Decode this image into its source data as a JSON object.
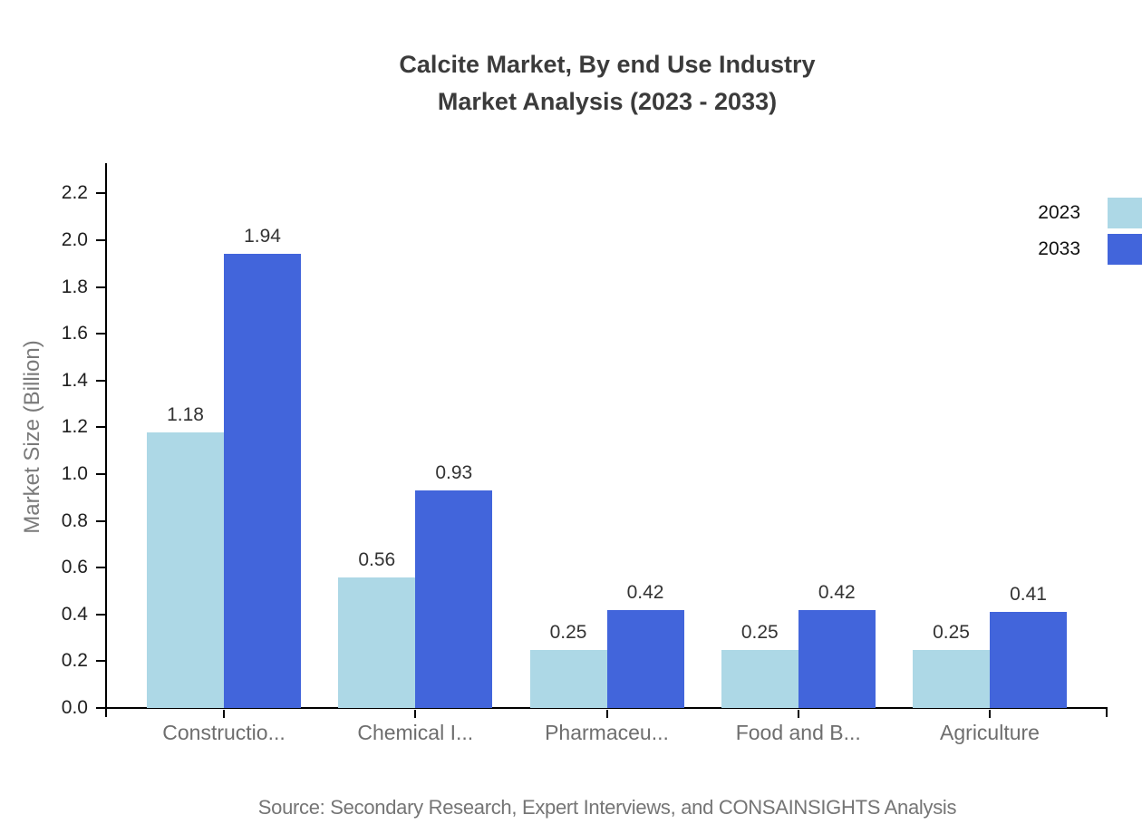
{
  "title": {
    "line1": "Calcite Market, By end Use Industry",
    "line2": "Market Analysis (2023 - 2033)"
  },
  "y_axis_label": "Market Size (Billion)",
  "source": "Source: Secondary Research, Expert Interviews, and CONSAINSIGHTS Analysis",
  "legend": {
    "items": [
      {
        "label": "2023",
        "color": "#ADD8E6"
      },
      {
        "label": "2033",
        "color": "#4265DB"
      }
    ]
  },
  "chart_data": {
    "type": "bar",
    "title": "Calcite Market, By end Use Industry Market Analysis (2023 - 2033)",
    "categories": [
      "Constructio...",
      "Chemical I...",
      "Pharmaceu...",
      "Food and B...",
      "Agriculture"
    ],
    "series": [
      {
        "name": "2023",
        "color": "#ADD8E6",
        "values": [
          1.18,
          0.56,
          0.25,
          0.25,
          0.25
        ]
      },
      {
        "name": "2033",
        "color": "#4265DB",
        "values": [
          1.94,
          0.93,
          0.42,
          0.42,
          0.41
        ]
      }
    ],
    "xlabel": "",
    "ylabel": "Market Size (Billion)",
    "ylim": [
      0,
      2.3
    ],
    "yticks": [
      0.0,
      0.2,
      0.4,
      0.6,
      0.8,
      1.0,
      1.2,
      1.4,
      1.6,
      1.8,
      2.0,
      2.2
    ],
    "grid": false,
    "value_labels": true,
    "legend_position": "top-right",
    "background": "#ffffff",
    "axis_color": "#000000"
  }
}
